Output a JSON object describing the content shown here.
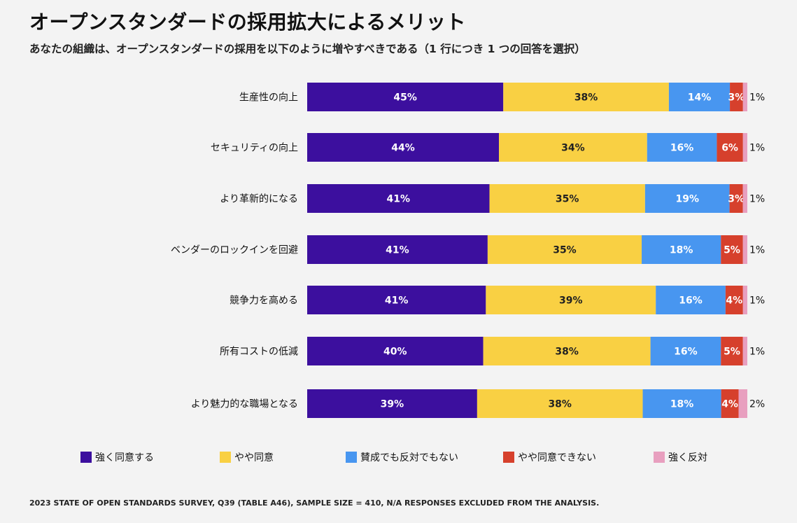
{
  "title": "オープンスタンダードの採用拡大によるメリット",
  "subtitle": "あなたの組織は、オープンスタンダードの採用を以下のように増やすべきである（1 行につき 1 つの回答を選択）",
  "footnote": "2023 STATE OF OPEN STANDARDS SURVEY, Q39 (TABLE A46), SAMPLE SIZE = 410, N/A RESPONSES EXCLUDED FROM THE ANALYSIS.",
  "chart_data": {
    "type": "bar",
    "orientation": "horizontal",
    "stacked": true,
    "unit": "%",
    "categories": [
      "生産性の向上",
      "セキュリティの向上",
      "より革新的になる",
      "ベンダーのロックインを回避",
      "競争力を高める",
      "所有コストの低減",
      "より魅力的な職場となる"
    ],
    "series": [
      {
        "name": "強く同意する",
        "color": "#3c0f9e",
        "label_color": "#ffffff",
        "values": [
          45,
          44,
          41,
          41,
          41,
          40,
          39
        ]
      },
      {
        "name": "やや同意",
        "color": "#f9d043",
        "label_color": "#222222",
        "values": [
          38,
          34,
          35,
          35,
          39,
          38,
          38
        ]
      },
      {
        "name": "賛成でも反対でもない",
        "color": "#4896f0",
        "label_color": "#ffffff",
        "values": [
          14,
          16,
          19,
          18,
          16,
          16,
          18
        ]
      },
      {
        "name": "やや同意できない",
        "color": "#d6402c",
        "label_color": "#ffffff",
        "values": [
          3,
          6,
          3,
          5,
          4,
          5,
          4
        ]
      },
      {
        "name": "強く反対",
        "color": "#e89fbf",
        "label_color": "#111111",
        "values": [
          1,
          1,
          1,
          1,
          1,
          1,
          2
        ]
      }
    ],
    "xlim": [
      0,
      100
    ],
    "grid": false,
    "legend_position": "bottom"
  }
}
